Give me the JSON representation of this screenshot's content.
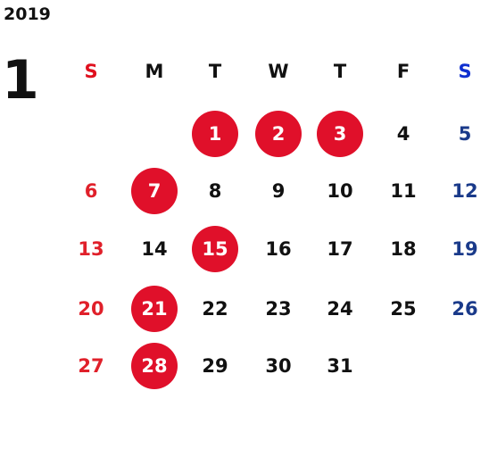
{
  "year": "2019",
  "month": "1",
  "weekdays": [
    "S",
    "M",
    "T",
    "W",
    "T",
    "F",
    "S"
  ],
  "weeks": [
    [
      null,
      null,
      {
        "day": 1,
        "marked": true
      },
      {
        "day": 2,
        "marked": true
      },
      {
        "day": 3,
        "marked": true
      },
      {
        "day": 4,
        "marked": false
      },
      {
        "day": 5,
        "marked": false
      }
    ],
    [
      {
        "day": 6,
        "marked": false
      },
      {
        "day": 7,
        "marked": true
      },
      {
        "day": 8,
        "marked": false
      },
      {
        "day": 9,
        "marked": false
      },
      {
        "day": 10,
        "marked": false
      },
      {
        "day": 11,
        "marked": false
      },
      {
        "day": 12,
        "marked": false
      }
    ],
    [
      {
        "day": 13,
        "marked": false
      },
      {
        "day": 14,
        "marked": false
      },
      {
        "day": 15,
        "marked": true
      },
      {
        "day": 16,
        "marked": false
      },
      {
        "day": 17,
        "marked": false
      },
      {
        "day": 18,
        "marked": false
      },
      {
        "day": 19,
        "marked": false
      }
    ],
    [
      {
        "day": 20,
        "marked": false
      },
      {
        "day": 21,
        "marked": true
      },
      {
        "day": 22,
        "marked": false
      },
      {
        "day": 23,
        "marked": false
      },
      {
        "day": 24,
        "marked": false
      },
      {
        "day": 25,
        "marked": false
      },
      {
        "day": 26,
        "marked": false
      }
    ],
    [
      {
        "day": 27,
        "marked": false
      },
      {
        "day": 28,
        "marked": true
      },
      {
        "day": 29,
        "marked": false
      },
      {
        "day": 30,
        "marked": false
      },
      {
        "day": 31,
        "marked": false
      },
      null,
      null
    ]
  ]
}
